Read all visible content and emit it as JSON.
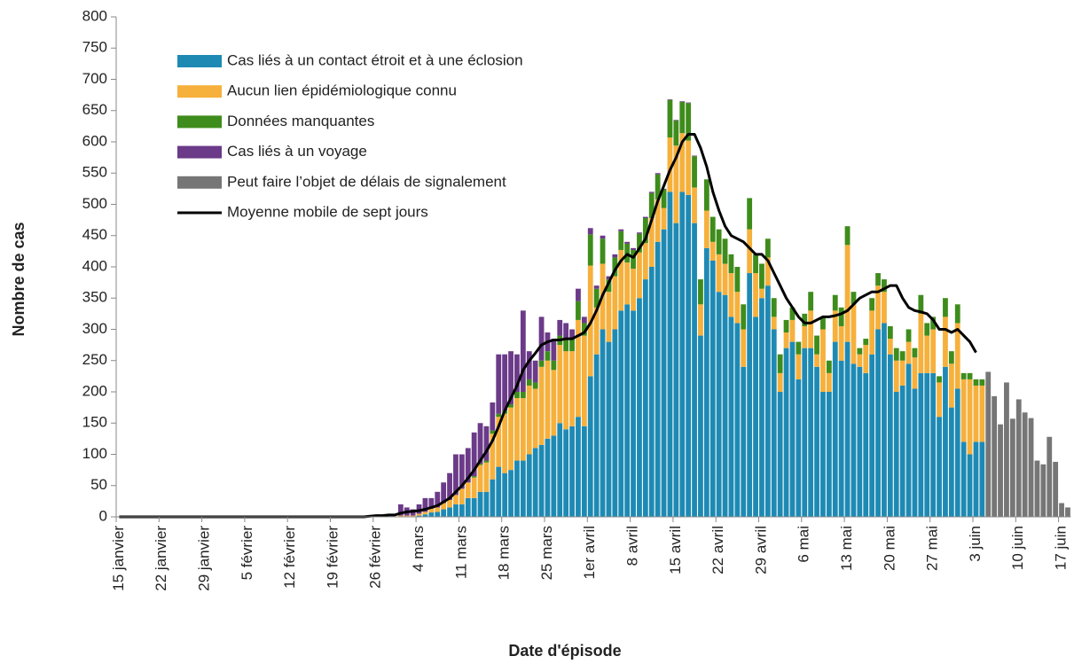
{
  "chart_data": {
    "type": "bar",
    "stacked": true,
    "x_label": "Date d'épisode",
    "y_label": "Nombre de cas",
    "categories": [
      "15 janvier",
      null,
      null,
      null,
      null,
      null,
      null,
      "22 janvier",
      null,
      null,
      null,
      null,
      null,
      null,
      "29 janvier",
      null,
      null,
      null,
      null,
      null,
      null,
      "5 février",
      null,
      null,
      null,
      null,
      null,
      null,
      "12 février",
      null,
      null,
      null,
      null,
      null,
      null,
      "19 février",
      null,
      null,
      null,
      null,
      null,
      null,
      "26 février",
      null,
      null,
      null,
      null,
      null,
      null,
      "4 mars",
      null,
      null,
      null,
      null,
      null,
      null,
      "11 mars",
      null,
      null,
      null,
      null,
      null,
      null,
      "18 mars",
      null,
      null,
      null,
      null,
      null,
      null,
      "25 mars",
      null,
      null,
      null,
      null,
      null,
      null,
      "1er avril",
      null,
      null,
      null,
      null,
      null,
      null,
      "8 avril",
      null,
      null,
      null,
      null,
      null,
      null,
      "15 avril",
      null,
      null,
      null,
      null,
      null,
      null,
      "22 avril",
      null,
      null,
      null,
      null,
      null,
      null,
      "29 avril",
      null,
      null,
      null,
      null,
      null,
      null,
      "6 mai",
      null,
      null,
      null,
      null,
      null,
      null,
      "13 mai",
      null,
      null,
      null,
      null,
      null,
      null,
      "20 mai",
      null,
      null,
      null,
      null,
      null,
      null,
      "27 mai",
      null,
      null,
      null,
      null,
      null,
      null,
      "3 juin",
      null,
      null,
      null,
      null,
      null,
      null,
      "10 juin",
      null,
      null,
      null,
      null,
      null,
      null,
      "17 juin",
      null
    ],
    "ylim": [
      0,
      800
    ],
    "yticks": [
      0,
      50,
      100,
      150,
      200,
      250,
      300,
      350,
      400,
      450,
      500,
      550,
      600,
      650,
      700,
      750,
      800
    ],
    "legend": "upper left",
    "series": [
      {
        "name": "Cas liés à un contact étroit et à une éclosion",
        "color": "#1e8ab4",
        "values": [
          null,
          null,
          null,
          null,
          null,
          null,
          null,
          null,
          null,
          null,
          null,
          null,
          null,
          null,
          null,
          null,
          null,
          null,
          null,
          null,
          null,
          null,
          null,
          null,
          null,
          null,
          null,
          null,
          null,
          null,
          null,
          null,
          null,
          null,
          null,
          null,
          null,
          null,
          null,
          null,
          null,
          null,
          null,
          null,
          null,
          null,
          0,
          0,
          0,
          2,
          4,
          7,
          8,
          12,
          15,
          20,
          20,
          30,
          30,
          40,
          40,
          60,
          80,
          70,
          75,
          90,
          90,
          100,
          110,
          115,
          125,
          130,
          150,
          140,
          145,
          160,
          145,
          225,
          260,
          300,
          280,
          300,
          330,
          340,
          330,
          350,
          380,
          400,
          440,
          460,
          520,
          470,
          520,
          515,
          470,
          290,
          430,
          410,
          360,
          355,
          320,
          310,
          240,
          390,
          320,
          350,
          370,
          300,
          200,
          270,
          280,
          220,
          270,
          270,
          240,
          200,
          200,
          280,
          250,
          280,
          245,
          240,
          230,
          260,
          300,
          310,
          260,
          200,
          210,
          245,
          205,
          230,
          230,
          230,
          160,
          240,
          175,
          205,
          120,
          100,
          120,
          120,
          null,
          null,
          null,
          null,
          null,
          null,
          null,
          null,
          null,
          null,
          null,
          null,
          null,
          null
        ]
      },
      {
        "name": "Aucun lien épidémiologique connu",
        "color": "#f6b03c",
        "values": [
          null,
          null,
          null,
          null,
          null,
          null,
          null,
          null,
          null,
          null,
          null,
          null,
          null,
          null,
          null,
          null,
          null,
          null,
          null,
          null,
          null,
          null,
          null,
          null,
          null,
          null,
          null,
          null,
          null,
          null,
          null,
          null,
          null,
          null,
          null,
          null,
          null,
          null,
          null,
          null,
          null,
          null,
          null,
          null,
          null,
          null,
          2,
          2,
          2,
          3,
          4,
          6,
          7,
          10,
          12,
          15,
          25,
          25,
          33,
          43,
          47,
          73,
          80,
          95,
          100,
          100,
          100,
          110,
          95,
          125,
          125,
          105,
          125,
          125,
          120,
          155,
          145,
          177,
          75,
          105,
          80,
          85,
          97,
          67,
          67,
          73,
          58,
          78,
          68,
          34,
          87,
          124,
          94,
          87,
          57,
          50,
          60,
          30,
          60,
          50,
          70,
          50,
          60,
          70,
          70,
          15,
          45,
          20,
          30,
          25,
          35,
          40,
          35,
          60,
          20,
          100,
          30,
          50,
          55,
          155,
          95,
          20,
          45,
          70,
          70,
          50,
          25,
          50,
          40,
          35,
          50,
          95,
          60,
          70,
          55,
          80,
          70,
          105,
          100,
          120,
          90,
          90,
          null,
          null,
          null,
          null,
          null,
          null,
          null,
          null,
          null,
          null,
          null,
          null,
          null,
          null
        ]
      },
      {
        "name": "Données manquantes",
        "color": "#3e8c1b",
        "values": [
          null,
          null,
          null,
          null,
          null,
          null,
          null,
          null,
          null,
          null,
          null,
          null,
          null,
          null,
          null,
          null,
          null,
          null,
          null,
          null,
          null,
          null,
          null,
          null,
          null,
          null,
          null,
          null,
          null,
          null,
          null,
          null,
          null,
          null,
          null,
          null,
          null,
          null,
          null,
          null,
          null,
          null,
          null,
          null,
          null,
          null,
          0,
          0,
          0,
          0,
          0,
          0,
          0,
          0,
          0,
          0,
          0,
          0,
          2,
          2,
          3,
          5,
          5,
          5,
          5,
          10,
          10,
          10,
          10,
          10,
          15,
          15,
          15,
          20,
          20,
          30,
          20,
          50,
          30,
          40,
          20,
          30,
          30,
          30,
          30,
          30,
          40,
          40,
          40,
          30,
          60,
          40,
          50,
          60,
          50,
          40,
          50,
          40,
          40,
          40,
          30,
          40,
          40,
          50,
          30,
          40,
          30,
          30,
          30,
          20,
          20,
          20,
          20,
          30,
          30,
          20,
          20,
          25,
          30,
          30,
          20,
          10,
          10,
          20,
          20,
          20,
          20,
          20,
          15,
          20,
          15,
          30,
          20,
          20,
          10,
          30,
          20,
          30,
          10,
          10,
          10,
          10,
          null,
          null,
          null,
          null,
          null,
          null,
          null,
          null,
          null,
          null,
          null,
          null,
          null,
          null
        ]
      },
      {
        "name": "Cas liés à un voyage",
        "color": "#6b3a88",
        "values": [
          null,
          null,
          null,
          null,
          null,
          null,
          null,
          null,
          null,
          null,
          null,
          null,
          null,
          null,
          null,
          null,
          null,
          null,
          null,
          null,
          null,
          null,
          null,
          null,
          null,
          null,
          null,
          null,
          null,
          null,
          null,
          null,
          null,
          null,
          null,
          null,
          null,
          null,
          null,
          null,
          null,
          null,
          null,
          null,
          null,
          null,
          18,
          13,
          10,
          15,
          22,
          17,
          25,
          33,
          43,
          65,
          55,
          55,
          70,
          65,
          55,
          45,
          95,
          90,
          85,
          60,
          130,
          45,
          35,
          70,
          30,
          35,
          25,
          25,
          15,
          20,
          10,
          10,
          5,
          5,
          5,
          5,
          3,
          3,
          3,
          2,
          2,
          2,
          2,
          1,
          1,
          1,
          1,
          1,
          1,
          0,
          0,
          0,
          0,
          0,
          0,
          0,
          0,
          0,
          0,
          0,
          0,
          0,
          0,
          0,
          0,
          0,
          0,
          0,
          0,
          0,
          0,
          0,
          0,
          0,
          0,
          0,
          0,
          0,
          0,
          0,
          0,
          0,
          0,
          0,
          0,
          0,
          0,
          0,
          0,
          0,
          0,
          0,
          0,
          0,
          0,
          0,
          null,
          null,
          null,
          null,
          null,
          null,
          null,
          null,
          null,
          null,
          null,
          null,
          null,
          null
        ]
      },
      {
        "name": "Peut faire l’objet de délais de signalement",
        "color": "#767676",
        "values": [
          null,
          null,
          null,
          null,
          null,
          null,
          null,
          null,
          null,
          null,
          null,
          null,
          null,
          null,
          null,
          null,
          null,
          null,
          null,
          null,
          null,
          null,
          null,
          null,
          null,
          null,
          null,
          null,
          null,
          null,
          null,
          null,
          null,
          null,
          null,
          null,
          null,
          null,
          null,
          null,
          null,
          null,
          null,
          null,
          null,
          null,
          null,
          null,
          null,
          null,
          null,
          null,
          null,
          null,
          null,
          null,
          null,
          null,
          null,
          null,
          null,
          null,
          null,
          null,
          null,
          null,
          null,
          null,
          null,
          null,
          null,
          null,
          null,
          null,
          null,
          null,
          null,
          null,
          null,
          null,
          null,
          null,
          null,
          null,
          null,
          null,
          null,
          null,
          null,
          null,
          null,
          null,
          null,
          null,
          null,
          null,
          null,
          null,
          null,
          null,
          null,
          null,
          null,
          null,
          null,
          null,
          null,
          null,
          null,
          null,
          null,
          null,
          null,
          null,
          null,
          null,
          null,
          null,
          null,
          null,
          null,
          null,
          null,
          null,
          null,
          null,
          null,
          null,
          null,
          null,
          null,
          null,
          null,
          null,
          null,
          null,
          null,
          null,
          null,
          null,
          null,
          null,
          232,
          193,
          148,
          215,
          157,
          188,
          167,
          158,
          90,
          84,
          128,
          88,
          22,
          15
        ]
      },
      {
        "name": "Moyenne mobile de sept jours",
        "type": "line",
        "color": "#000000",
        "values": [
          0,
          0,
          0,
          0,
          0,
          0,
          0,
          0,
          0,
          0,
          0,
          0,
          0,
          0,
          0,
          0,
          0,
          0,
          0,
          0,
          0,
          0,
          0,
          0,
          0,
          0,
          0,
          0,
          0,
          0,
          0,
          0,
          0,
          0,
          0,
          0,
          0,
          0,
          0,
          0,
          0,
          1,
          2,
          2,
          3,
          3,
          6,
          8,
          9,
          10,
          12,
          15,
          18,
          24,
          30,
          40,
          50,
          62,
          75,
          90,
          105,
          122,
          145,
          170,
          190,
          210,
          235,
          250,
          262,
          275,
          280,
          283,
          283,
          285,
          285,
          290,
          295,
          310,
          330,
          355,
          375,
          395,
          410,
          420,
          415,
          430,
          445,
          475,
          505,
          530,
          555,
          575,
          600,
          612,
          612,
          590,
          560,
          520,
          490,
          465,
          450,
          445,
          440,
          430,
          420,
          420,
          410,
          390,
          370,
          350,
          335,
          320,
          310,
          310,
          315,
          320,
          320,
          322,
          325,
          330,
          340,
          350,
          355,
          360,
          360,
          365,
          370,
          370,
          350,
          335,
          330,
          328,
          325,
          315,
          300,
          300,
          295,
          300,
          290,
          280,
          263,
          null,
          null,
          null,
          null,
          null,
          null,
          null,
          null,
          null,
          null,
          null,
          null,
          null,
          null,
          null
        ]
      }
    ]
  }
}
